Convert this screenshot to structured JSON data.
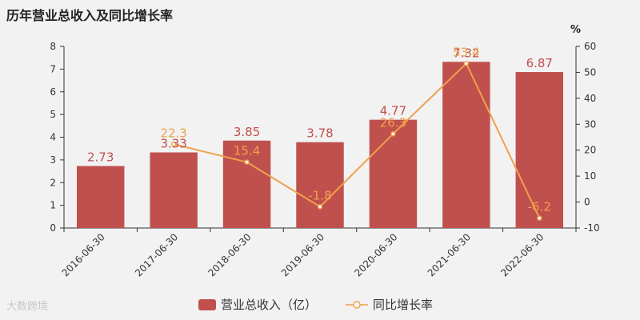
{
  "chart_data": {
    "type": "bar",
    "title": "历年营业总收入及同比增长率",
    "categories": [
      "2016-06-30",
      "2017-06-30",
      "2018-06-30",
      "2019-06-30",
      "2020-06-30",
      "2021-06-30",
      "2022-06-30"
    ],
    "series": [
      {
        "name": "营业总收入（亿）",
        "type": "bar",
        "axis": "left",
        "values": [
          2.73,
          3.33,
          3.85,
          3.78,
          4.77,
          7.32,
          6.87
        ],
        "color": "#c0504d"
      },
      {
        "name": "同比增长率",
        "type": "line",
        "axis": "right",
        "values": [
          null,
          22.3,
          15.4,
          -1.8,
          26.3,
          53.4,
          -6.2
        ],
        "color": "#f0a04b"
      }
    ],
    "left_axis": {
      "ylim": [
        0,
        8
      ],
      "ticks": [
        "0",
        "1",
        "2",
        "3",
        "4",
        "5",
        "6",
        "7",
        "8"
      ]
    },
    "right_axis": {
      "unit": "%",
      "ylim": [
        -10,
        60
      ],
      "ticks": [
        "-10",
        "0",
        "10",
        "20",
        "30",
        "40",
        "50",
        "60"
      ]
    },
    "legend_position": "bottom-center",
    "grid": false
  },
  "watermark": "大数跨境"
}
